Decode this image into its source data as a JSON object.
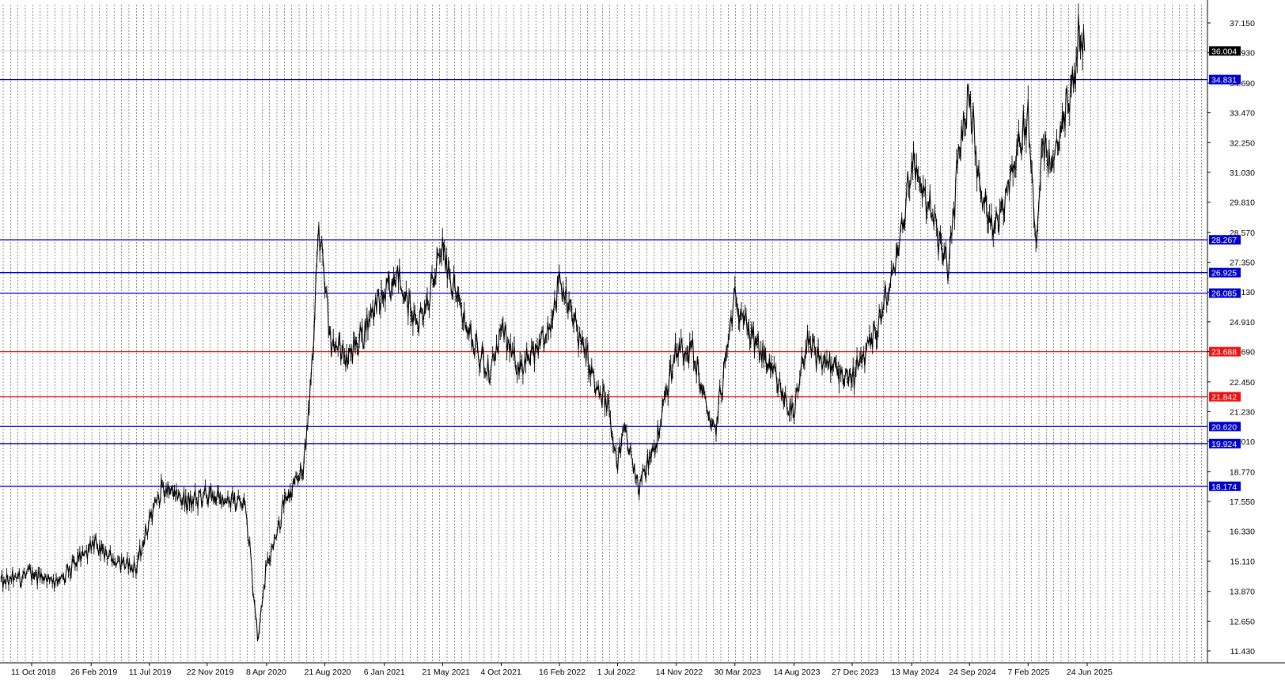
{
  "chart_data": {
    "type": "line",
    "style": "bar-chart-ohlc-like price series (black)",
    "x_tick_labels": [
      "11 Oct 2018",
      "26 Feb 2019",
      "11 Jul 2019",
      "22 Nov 2019",
      "8 Apr 2020",
      "21 Aug 2020",
      "6 Jan 2021",
      "21 May 2021",
      "4 Oct 2021",
      "16 Feb 2022",
      "1 Jul 2022",
      "14 Nov 2022",
      "30 Mar 2023",
      "14 Aug 2023",
      "27 Dec 2023",
      "13 May 2024",
      "24 Sep 2024",
      "7 Feb 2025",
      "24 Jun 2025"
    ],
    "y_tick_labels": [
      "37.150",
      "35.930",
      "34.690",
      "33.470",
      "32.250",
      "31.030",
      "29.810",
      "28.570",
      "27.350",
      "26.130",
      "24.910",
      "23.690",
      "22.450",
      "21.230",
      "20.010",
      "18.770",
      "17.550",
      "16.330",
      "15.110",
      "13.870",
      "12.650",
      "11.430"
    ],
    "ylim": [
      11.0,
      38.0
    ],
    "current_price": {
      "label": "36.004",
      "value": 36.004,
      "bg": "#000000"
    },
    "levels": [
      {
        "label": "34.831",
        "value": 34.831,
        "color": "#0000cd"
      },
      {
        "label": "28.267",
        "value": 28.267,
        "color": "#0000cd"
      },
      {
        "label": "26.925",
        "value": 26.925,
        "color": "#0000cd"
      },
      {
        "label": "26.085",
        "value": 26.085,
        "color": "#0000cd"
      },
      {
        "label": "23.688",
        "value": 23.688,
        "color": "#ee1111"
      },
      {
        "label": "21.842",
        "value": 21.842,
        "color": "#ee1111"
      },
      {
        "label": "20.620",
        "value": 20.62,
        "color": "#0000cd"
      },
      {
        "label": "19.924",
        "value": 19.924,
        "color": "#0000cd"
      },
      {
        "label": "18.174",
        "value": 18.174,
        "color": "#0000cd"
      }
    ],
    "series": [
      {
        "color": "#000000",
        "x": [
          "2018-08-01",
          "2018-10-11",
          "2018-12-20",
          "2019-02-26",
          "2019-04-20",
          "2019-06-10",
          "2019-07-11",
          "2019-08-10",
          "2019-10-10",
          "2019-11-22",
          "2020-01-20",
          "2020-02-20",
          "2020-03-18",
          "2020-04-08",
          "2020-05-20",
          "2020-06-30",
          "2020-07-10",
          "2020-07-20",
          "2020-08-07",
          "2020-08-21",
          "2020-09-05",
          "2020-10-15",
          "2020-11-20",
          "2020-12-10",
          "2021-01-06",
          "2021-02-01",
          "2021-03-20",
          "2021-04-20",
          "2021-05-21",
          "2021-06-25",
          "2021-08-01",
          "2021-09-10",
          "2021-10-04",
          "2021-11-10",
          "2021-12-20",
          "2022-01-20",
          "2022-02-16",
          "2022-03-08",
          "2022-04-10",
          "2022-05-15",
          "2022-06-10",
          "2022-07-01",
          "2022-07-15",
          "2022-08-20",
          "2022-09-30",
          "2022-10-15",
          "2022-11-14",
          "2022-12-20",
          "2023-02-10",
          "2023-03-10",
          "2023-03-30",
          "2023-05-10",
          "2023-06-20",
          "2023-08-14",
          "2023-09-10",
          "2023-10-25",
          "2023-12-27",
          "2024-02-10",
          "2024-03-25",
          "2024-04-20",
          "2024-05-13",
          "2024-06-20",
          "2024-08-05",
          "2024-09-01",
          "2024-09-24",
          "2024-10-20",
          "2024-11-25",
          "2025-01-05",
          "2025-02-07",
          "2025-02-25",
          "2025-03-12",
          "2025-04-08",
          "2025-04-25",
          "2025-05-25",
          "2025-06-06",
          "2025-06-18"
        ],
        "values": [
          14.2,
          14.6,
          14.3,
          15.8,
          15.2,
          14.8,
          16.8,
          18.1,
          17.5,
          17.8,
          17.6,
          17.4,
          12.0,
          14.9,
          17.5,
          18.8,
          20.3,
          22.5,
          28.8,
          26.3,
          24.0,
          23.5,
          24.5,
          25.5,
          25.9,
          27.0,
          24.8,
          26.0,
          27.9,
          25.8,
          24.0,
          22.8,
          24.6,
          23.1,
          23.6,
          24.3,
          26.8,
          25.6,
          24.0,
          22.0,
          21.5,
          19.0,
          20.5,
          18.2,
          20.0,
          21.5,
          23.8,
          23.8,
          20.2,
          23.5,
          26.0,
          24.2,
          23.0,
          21.0,
          24.0,
          23.2,
          22.6,
          24.0,
          26.4,
          28.7,
          31.5,
          29.8,
          27.0,
          32.0,
          34.3,
          30.0,
          28.8,
          31.5,
          33.3,
          28.3,
          32.2,
          31.2,
          33.0,
          34.8,
          37.0,
          36.0
        ]
      }
    ]
  }
}
